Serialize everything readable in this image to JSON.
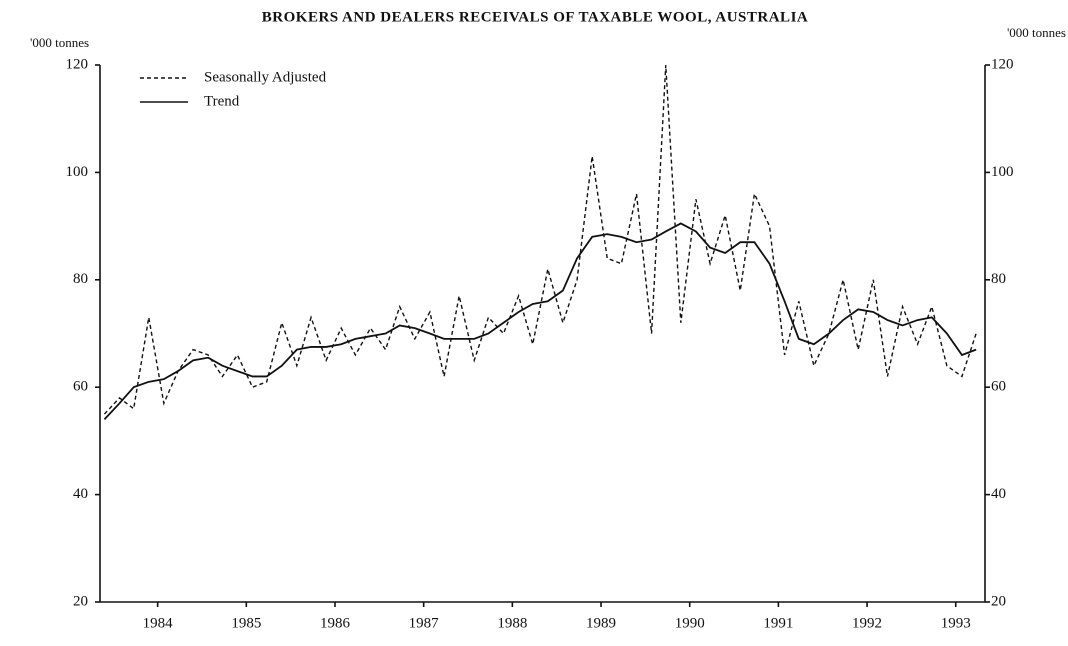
{
  "chart_data": {
    "type": "line",
    "title": "BROKERS AND DEALERS RECEIVALS OF TAXABLE WOOL, AUSTRALIA",
    "ylabel": "'000 tonnes",
    "y2label": "'000 tonnes",
    "x": [
      1983.4,
      1983.57,
      1983.73,
      1983.9,
      1984.07,
      1984.23,
      1984.4,
      1984.57,
      1984.73,
      1984.9,
      1985.07,
      1985.23,
      1985.4,
      1985.57,
      1985.73,
      1985.9,
      1986.07,
      1986.23,
      1986.4,
      1986.57,
      1986.73,
      1986.9,
      1987.07,
      1987.23,
      1987.4,
      1987.57,
      1987.73,
      1987.9,
      1988.07,
      1988.23,
      1988.4,
      1988.57,
      1988.73,
      1988.9,
      1989.07,
      1989.23,
      1989.4,
      1989.57,
      1989.73,
      1989.9,
      1990.07,
      1990.23,
      1990.4,
      1990.57,
      1990.73,
      1990.9,
      1991.07,
      1991.23,
      1991.4,
      1991.57,
      1991.73,
      1991.9,
      1992.07,
      1992.23,
      1992.4,
      1992.57,
      1992.73,
      1992.9,
      1993.07,
      1993.23
    ],
    "series": [
      {
        "name": "Seasonally Adjusted",
        "color": "#111111",
        "dash": true,
        "values": [
          55,
          58,
          56,
          73,
          57,
          63,
          67,
          66,
          62,
          66,
          60,
          61,
          72,
          64,
          73,
          65,
          71,
          66,
          71,
          67,
          75,
          69,
          74,
          62,
          77,
          65,
          73,
          70,
          77,
          68,
          82,
          72,
          80,
          103,
          84,
          83,
          96,
          70,
          120,
          72,
          95,
          83,
          92,
          78,
          96,
          90,
          66,
          76,
          64,
          70,
          80,
          67,
          80,
          62,
          75,
          68,
          75,
          64,
          62,
          70
        ]
      },
      {
        "name": "Trend",
        "color": "#111111",
        "dash": false,
        "values": [
          54,
          57,
          60,
          61,
          61.5,
          63,
          65,
          65.5,
          64,
          63,
          62,
          62,
          64,
          67,
          67.5,
          67.5,
          68,
          69,
          69.5,
          70,
          71.5,
          71,
          70,
          69,
          69,
          69,
          70,
          72,
          74,
          75.5,
          76,
          78,
          84,
          88,
          88.5,
          88,
          87,
          87.5,
          89,
          90.5,
          89,
          86,
          85,
          87,
          87,
          83,
          76,
          69,
          68,
          70,
          72.5,
          74.5,
          74,
          72.5,
          71.5,
          72.5,
          73,
          70,
          66,
          67
        ]
      }
    ],
    "xlim": [
      1983.35,
      1993.33
    ],
    "xticks": [
      1984,
      1985,
      1986,
      1987,
      1988,
      1989,
      1990,
      1991,
      1992,
      1993
    ],
    "ylim": [
      20,
      120
    ],
    "yticks": [
      20,
      40,
      60,
      80,
      100,
      120
    ],
    "y2lim": [
      20,
      120
    ],
    "y2ticks": [
      20,
      40,
      60,
      80,
      100,
      120
    ]
  }
}
